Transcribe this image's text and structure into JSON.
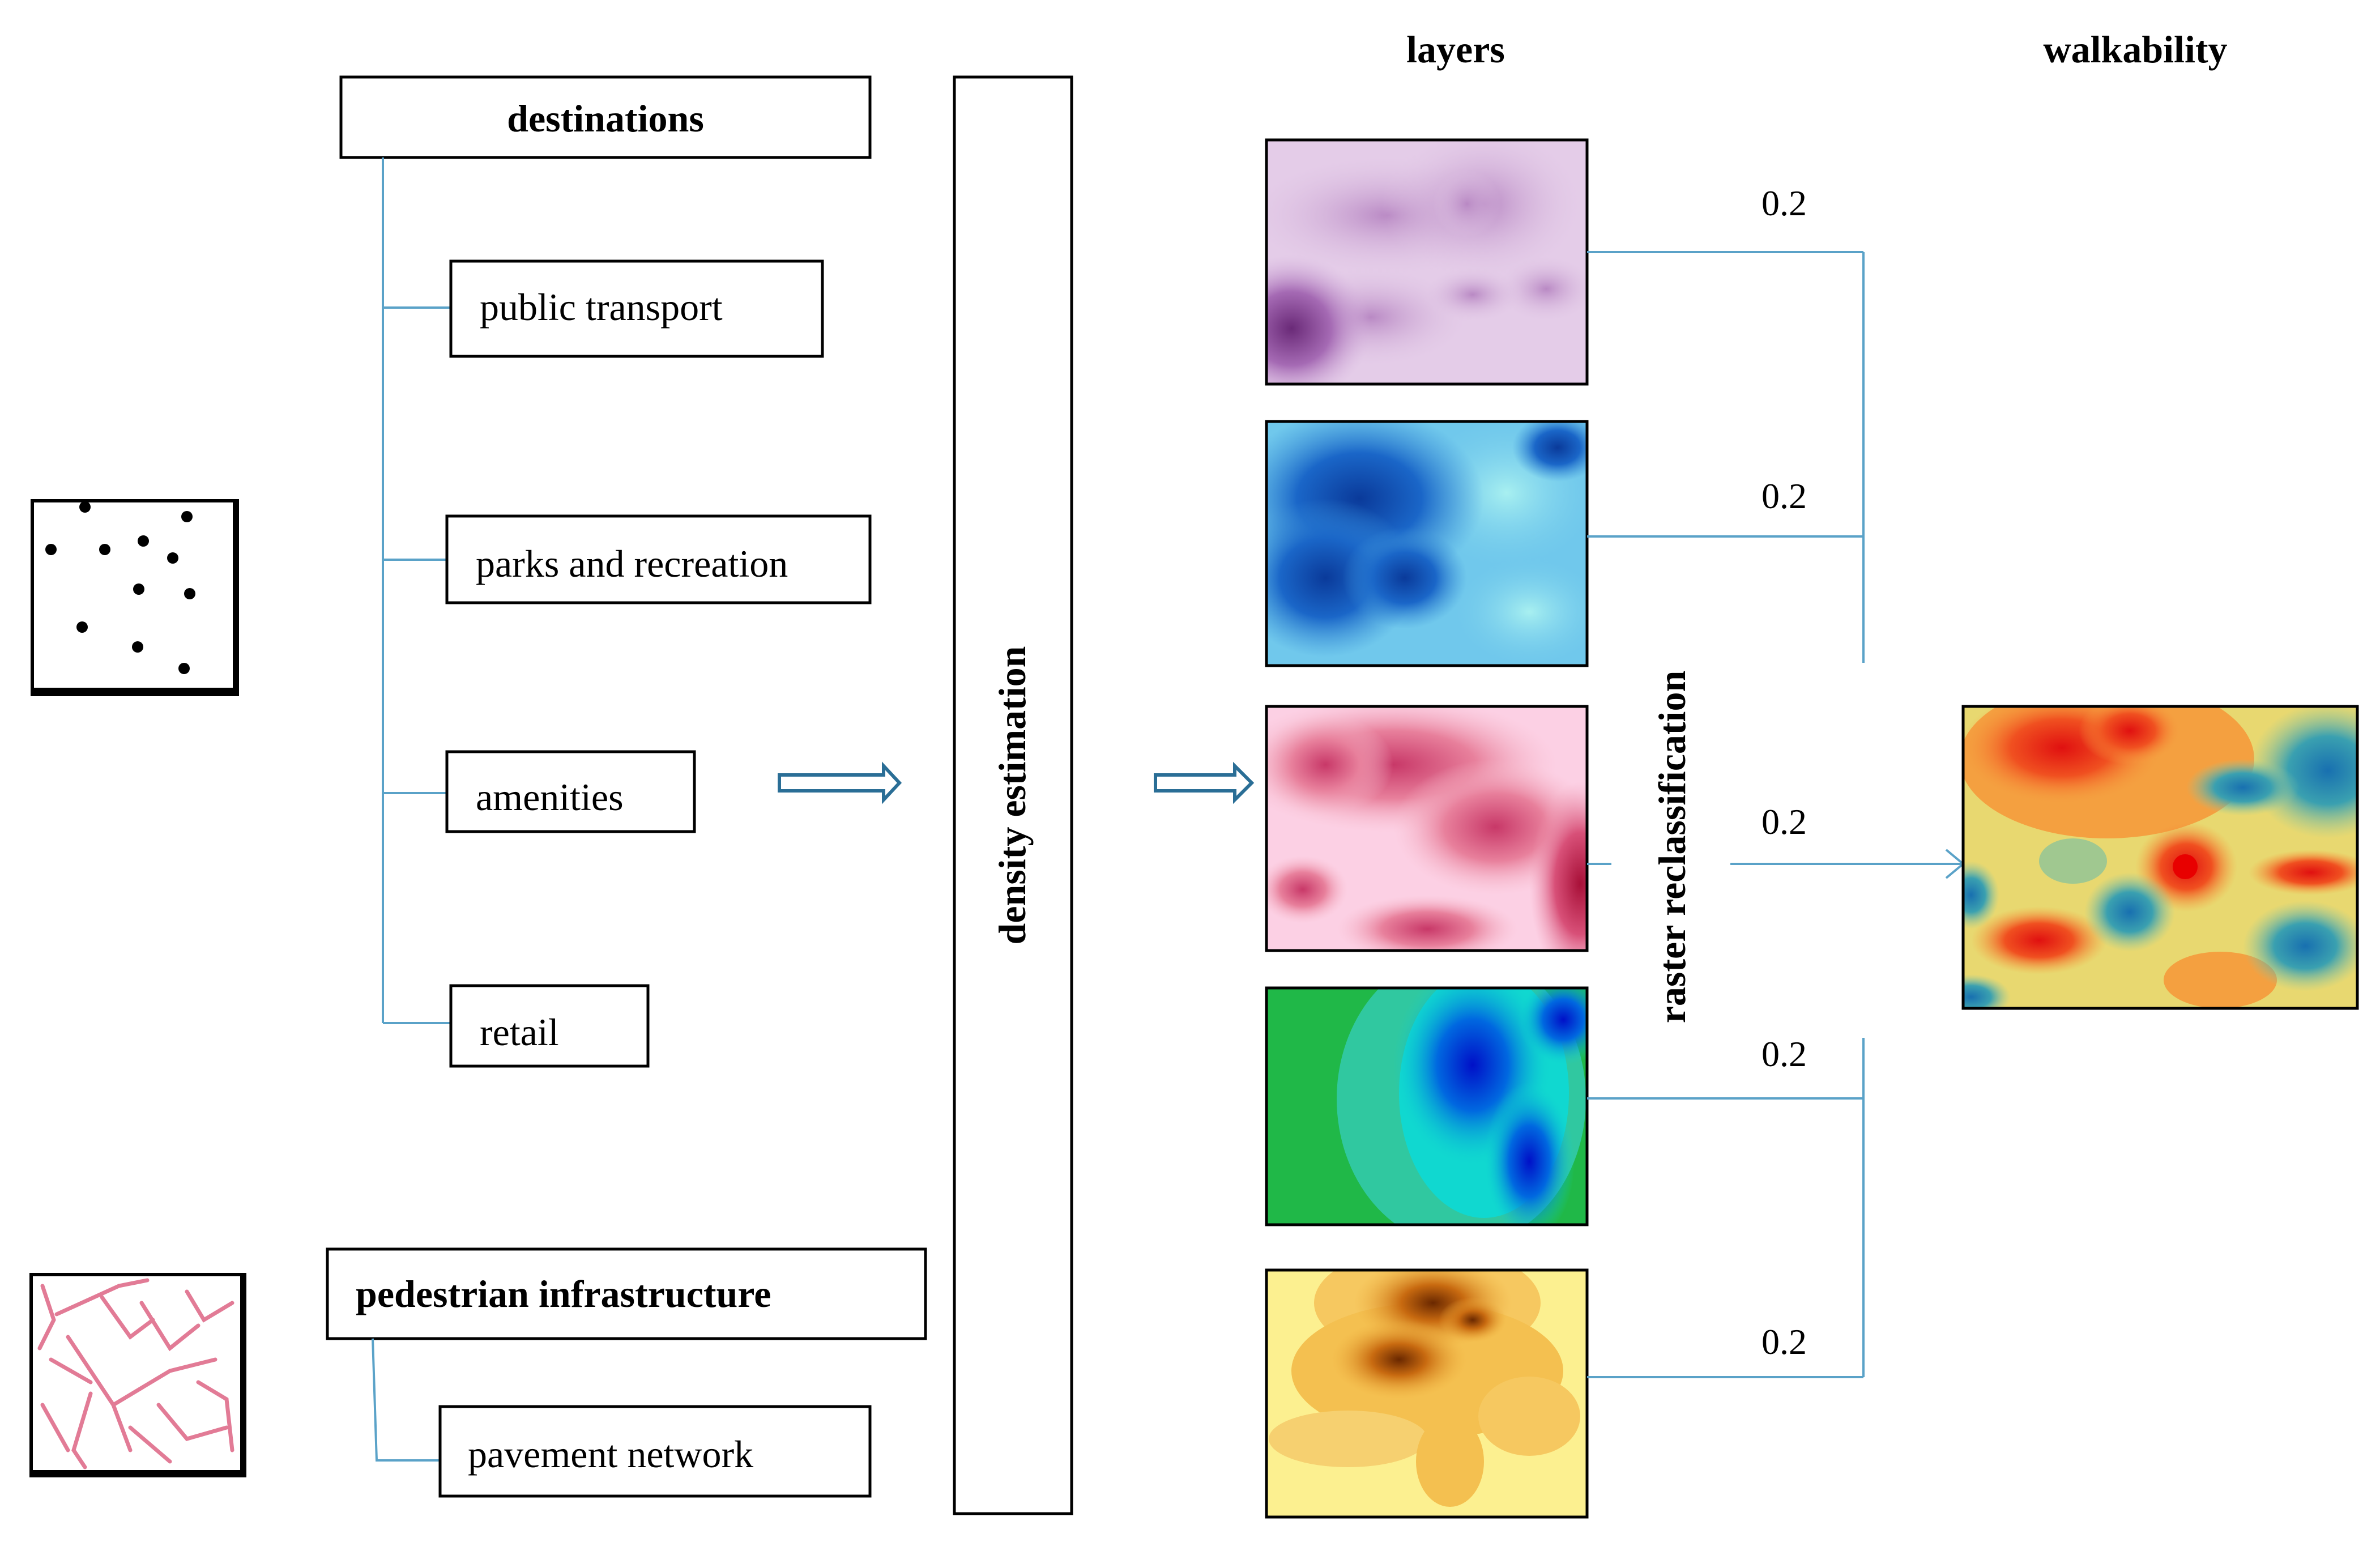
{
  "headers": {
    "layers": "layers",
    "walkability": "walkability"
  },
  "destinations": {
    "title": "destinations",
    "items": [
      "public transport",
      "parks and recreation",
      "amenities",
      "retail"
    ]
  },
  "pedestrian": {
    "title": "pedestrian infrastructure",
    "item": "pavement network"
  },
  "process": {
    "density_estimation": "density estimation",
    "raster_reclassification": "raster reclassification"
  },
  "weights": [
    "0.2",
    "0.2",
    "0.2",
    "0.2",
    "0.2"
  ],
  "colors": {
    "connector": "#5aa2c8",
    "arrow": "#2a6e96",
    "layer1": "#e4cce8",
    "layer2": "#1a66c8",
    "layer3": "#f4a8c0",
    "layer4": "#20b890",
    "layer5": "#f8e060"
  }
}
